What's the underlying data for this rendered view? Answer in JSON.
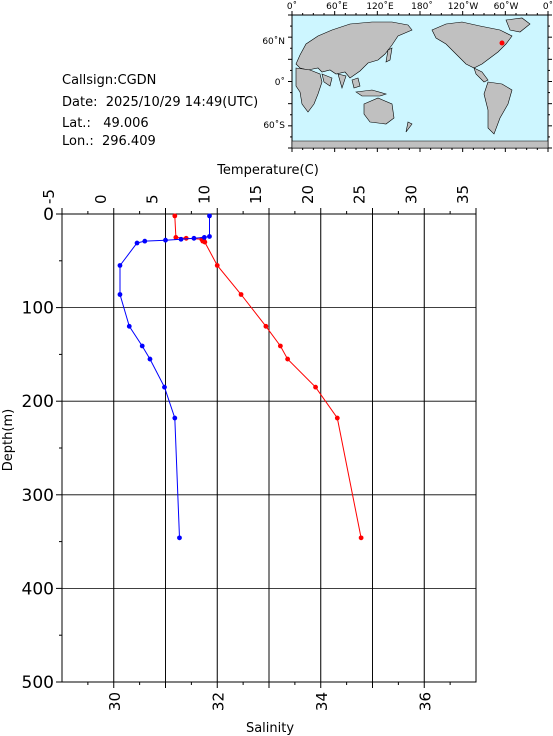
{
  "station": {
    "callsign": "Callsign:CGDN",
    "date": "Date:  2025/10/29 14:49(UTC)",
    "lat": "Lat.:   49.006",
    "lon": "Lon.:  296.409"
  },
  "map": {
    "top_labels": [
      "0˚",
      "60˚E",
      "120˚E",
      "180˚",
      "120˚W",
      "60˚W",
      "0˚"
    ],
    "lat_labels": [
      "60˚N",
      "0˚",
      "60˚S"
    ],
    "ocean_color": "#cdf6ff",
    "land_color": "#c0c0c0",
    "marker_color": "#ff0000"
  },
  "chart_data": {
    "type": "line",
    "title": "",
    "top_axis_label": "Temperature(C)",
    "bottom_axis_label": "Salinity",
    "ylabel": "Depth(m)",
    "y_reversed": true,
    "ylim": [
      0,
      500
    ],
    "temperature_xlim": [
      -5,
      35
    ],
    "salinity_xlim": [
      29,
      37
    ],
    "temperature_ticks": [
      -5,
      0,
      5,
      10,
      15,
      20,
      25,
      30,
      35
    ],
    "salinity_ticks": [
      30,
      32,
      34,
      36
    ],
    "depth_ticks": [
      0,
      100,
      200,
      300,
      400,
      500
    ],
    "grid": true,
    "series": [
      {
        "axis": "temperature",
        "color": "#ff0000",
        "depth": [
          2,
          25,
          26,
          27,
          28,
          29,
          30,
          55,
          86,
          120,
          141,
          155,
          185,
          218,
          346
        ],
        "values": [
          5.9,
          6.0,
          7.0,
          8.5,
          8.7,
          8.6,
          8.8,
          10.0,
          12.3,
          14.7,
          16.1,
          16.8,
          19.5,
          21.6,
          23.9
        ]
      },
      {
        "axis": "salinity",
        "color": "#0000ff",
        "depth": [
          2,
          24,
          25,
          26,
          27,
          28,
          29,
          31,
          55,
          86,
          120,
          141,
          155,
          185,
          218,
          346
        ],
        "values": [
          31.85,
          31.85,
          31.75,
          31.55,
          31.3,
          31.0,
          30.6,
          30.45,
          30.12,
          30.12,
          30.3,
          30.55,
          30.7,
          30.98,
          31.18,
          31.27
        ]
      }
    ]
  }
}
